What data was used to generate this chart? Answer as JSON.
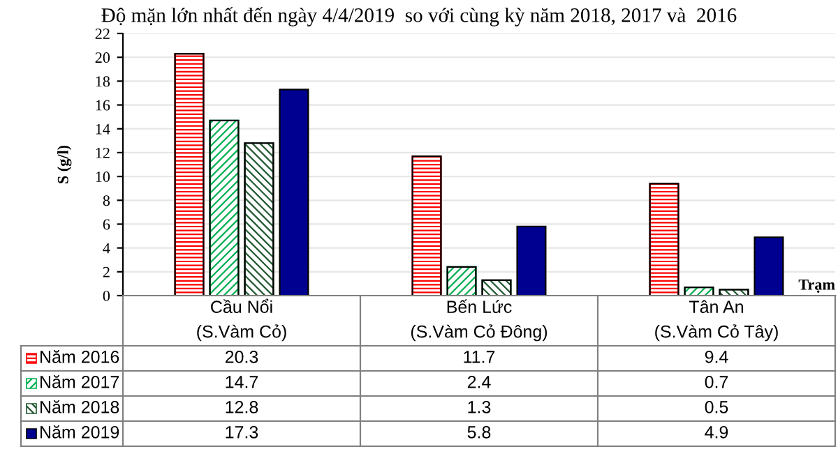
{
  "chart_data": {
    "type": "bar",
    "title": "Độ mặn lớn nhất đến ngày 4/4/2019  so với cùng kỳ năm 2018, 2017 và  2016",
    "categories": [
      "Cầu Nổi\n(S.Vàm Cỏ)",
      "Bến Lức\n(S.Vàm Cỏ Đông)",
      "Tân An\n(S.Vàm Cỏ Tây)"
    ],
    "series": [
      {
        "name": "Năm 2016",
        "color": "#ff0000",
        "values": [
          20.3,
          11.7,
          9.4
        ]
      },
      {
        "name": "Năm 2017",
        "color": "#00b050",
        "values": [
          14.7,
          2.4,
          0.7
        ]
      },
      {
        "name": "Năm 2018",
        "color": "#215a32",
        "values": [
          12.8,
          1.3,
          0.5
        ]
      },
      {
        "name": "Năm 2019",
        "color": "#000090",
        "values": [
          17.3,
          5.8,
          4.9
        ]
      }
    ],
    "xlabel": "Trạm",
    "ylabel": "S (g/l)",
    "ylim": [
      0,
      22
    ],
    "yticks": [
      0,
      2,
      4,
      6,
      8,
      10,
      12,
      14,
      16,
      18,
      20,
      22
    ],
    "grid": "y",
    "legend": "bottom",
    "data_labels": true
  }
}
